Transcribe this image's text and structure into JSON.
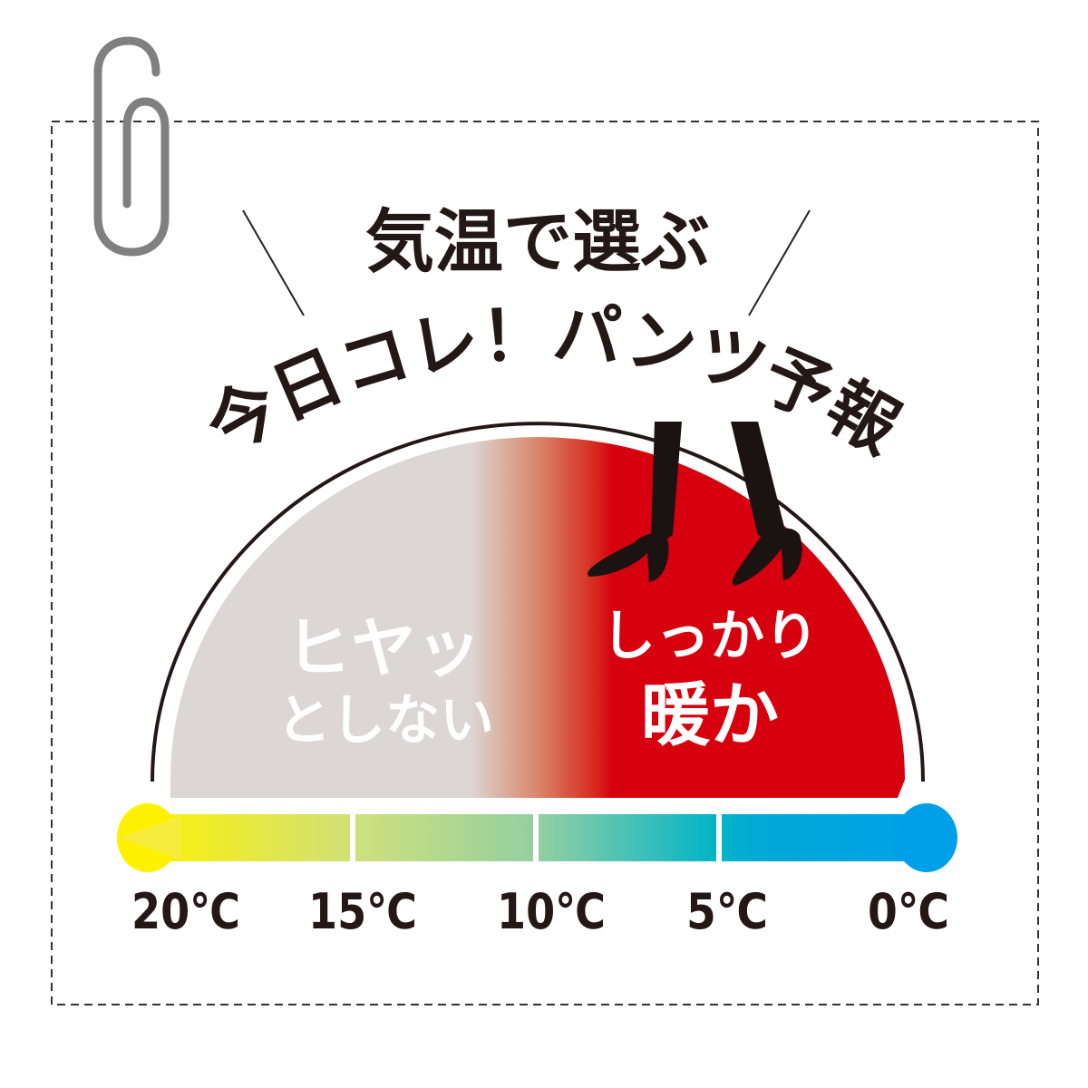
{
  "heading": {
    "subtitle": "気温で選ぶ",
    "title": "今日コレ！パンツ予報"
  },
  "gauge": {
    "left_label_line1": "ヒヤッ",
    "left_label_line2": "としない",
    "right_label_line1": "しっかり",
    "right_label_line2": "暖か",
    "colors": {
      "cool_side": "#dcd6d4",
      "warm_side": "#d7000f",
      "bar_warm_end": "#fff100",
      "bar_cold_end": "#00a0e9"
    }
  },
  "scale": {
    "ticks": [
      "20℃",
      "15℃",
      "10℃",
      "5℃",
      "0℃"
    ]
  },
  "icons": [
    "paperclip-icon",
    "high-heels-legs-icon"
  ]
}
